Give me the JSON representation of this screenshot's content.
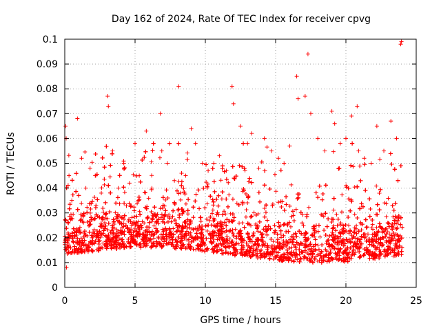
{
  "chart_data": {
    "type": "scatter",
    "title": "Day 162 of 2024, Rate Of TEC Index for receiver cpvg",
    "xlabel": "GPS time / hours",
    "ylabel": "ROTI / TECUs",
    "xlim": [
      0,
      25
    ],
    "ylim": [
      0,
      0.1
    ],
    "x_ticks": [
      "0",
      "5",
      "10",
      "15",
      "20",
      "25"
    ],
    "y_ticks": [
      "0",
      "0.01",
      "0.02",
      "0.03",
      "0.04",
      "0.05",
      "0.06",
      "0.07",
      "0.08",
      "0.09",
      "0.1"
    ],
    "grid": true,
    "marker": "plus",
    "color": "#ff0000",
    "series": [
      {
        "x": [
          0.05,
          0.1,
          0.12,
          0.2,
          0.3,
          0.5,
          0.9,
          1.2,
          1.5,
          1.8,
          2.2,
          2.6,
          3.05,
          3.1,
          3.4,
          3.8,
          4.2,
          4.6,
          5.0,
          5.3,
          5.8,
          6.2,
          6.8,
          6.9,
          7.3,
          7.8,
          8.1,
          8.6,
          9.0,
          9.3,
          9.8,
          10.2,
          10.6,
          11.0,
          11.5,
          11.9,
          12.0,
          12.5,
          13.0,
          13.3,
          13.8,
          14.2,
          14.7,
          15.2,
          15.6,
          16.0,
          16.5,
          16.6,
          17.1,
          17.3,
          17.5,
          18.0,
          18.5,
          19.0,
          19.2,
          19.6,
          20.0,
          20.4,
          20.8,
          20.9,
          21.3,
          21.8,
          22.2,
          22.7,
          23.2,
          23.6,
          23.9,
          23.95
        ],
        "y": [
          0.065,
          0.06,
          0.008,
          0.02,
          0.045,
          0.035,
          0.068,
          0.052,
          0.04,
          0.048,
          0.045,
          0.038,
          0.077,
          0.073,
          0.055,
          0.04,
          0.05,
          0.042,
          0.058,
          0.045,
          0.063,
          0.04,
          0.07,
          0.055,
          0.05,
          0.043,
          0.081,
          0.045,
          0.064,
          0.058,
          0.05,
          0.047,
          0.05,
          0.053,
          0.047,
          0.081,
          0.074,
          0.065,
          0.058,
          0.062,
          0.048,
          0.06,
          0.055,
          0.052,
          0.05,
          0.057,
          0.085,
          0.076,
          0.077,
          0.094,
          0.07,
          0.06,
          0.055,
          0.071,
          0.066,
          0.058,
          0.06,
          0.069,
          0.073,
          0.055,
          0.052,
          0.05,
          0.065,
          0.055,
          0.067,
          0.06,
          0.098,
          0.099
        ]
      }
    ]
  }
}
